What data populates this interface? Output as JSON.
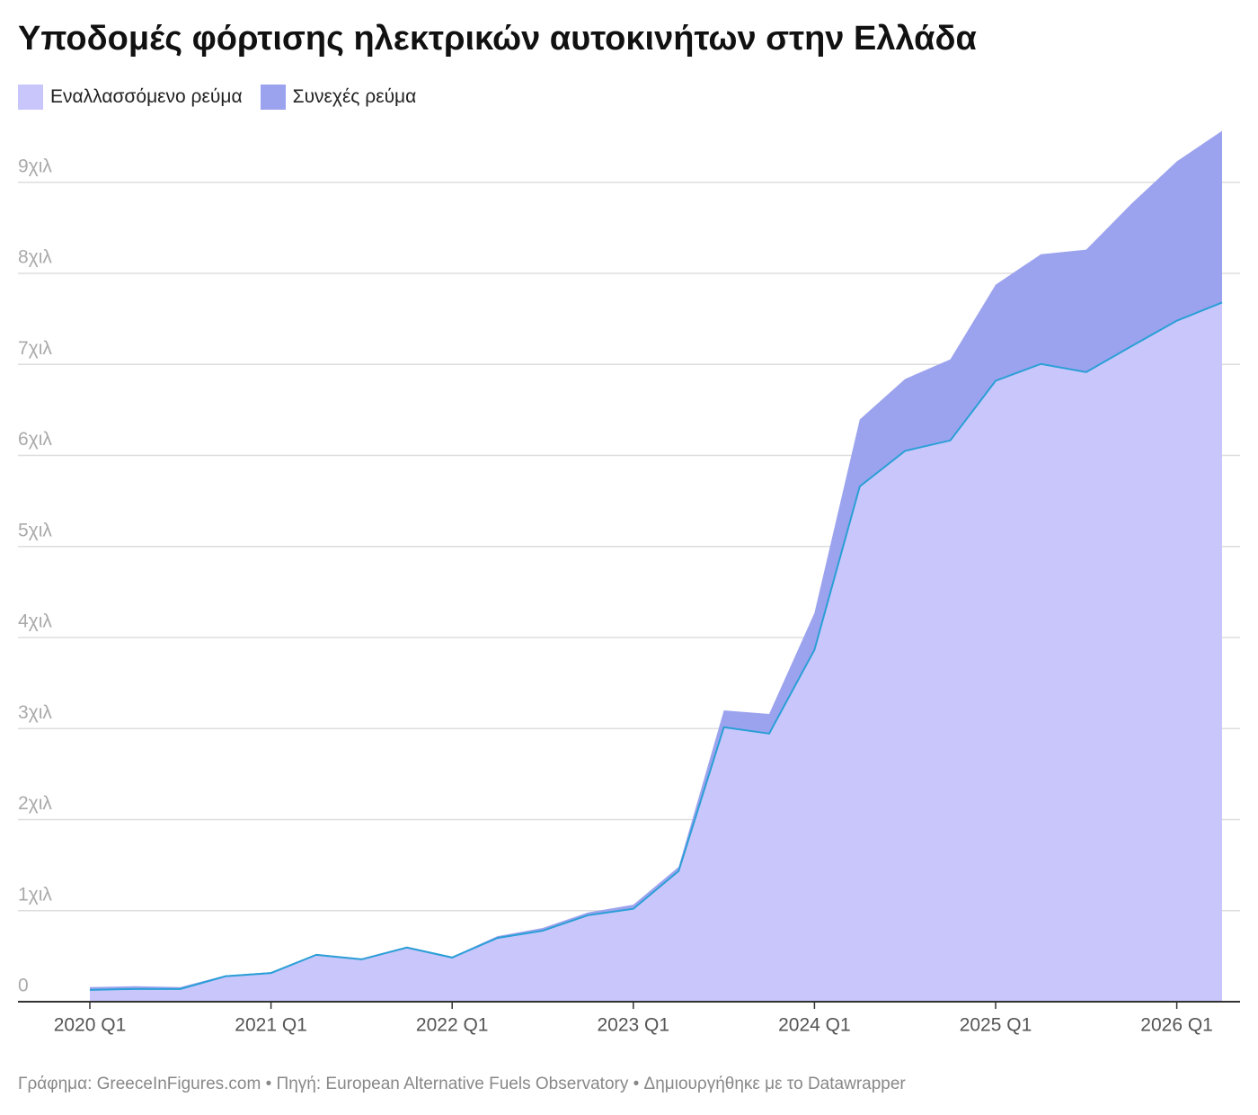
{
  "chart_data": {
    "type": "stacked_area",
    "title": "Υποδομές φόρτισης ηλεκτρικών αυτοκινήτων στην Ελλάδα",
    "categories": [
      "2020 Q1",
      null,
      null,
      null,
      "2021 Q1",
      null,
      null,
      null,
      "2022 Q1",
      null,
      null,
      null,
      "2023 Q1",
      null,
      null,
      null,
      "2024 Q1",
      null,
      null,
      null,
      "2025 Q1",
      null,
      null,
      null,
      "2026 Q1",
      null
    ],
    "series": [
      {
        "name": "Εναλλασσόμενο ρεύμα",
        "color": "#c9c6fc",
        "line_color": "#2a9fd6",
        "values": [
          130,
          140,
          140,
          280,
          315,
          515,
          465,
          595,
          485,
          700,
          780,
          950,
          1020,
          1435,
          3015,
          2945,
          3865,
          5660,
          6050,
          6165,
          6820,
          7005,
          6915,
          7200,
          7480,
          7680
        ]
      },
      {
        "name": "Συνεχές ρεύμα",
        "color": "#9ca3ee",
        "values": [
          30,
          30,
          20,
          10,
          10,
          10,
          10,
          10,
          10,
          20,
          30,
          30,
          45,
          45,
          185,
          215,
          405,
          735,
          790,
          890,
          1055,
          1205,
          1345,
          1565,
          1750,
          1885
        ]
      }
    ],
    "ylim": [
      0,
      9600
    ],
    "yticks": [
      0,
      {
        "value": 1000,
        "label": "1χιλ"
      },
      {
        "value": 2000,
        "label": "2χιλ"
      },
      {
        "value": 3000,
        "label": "3χιλ"
      },
      {
        "value": 4000,
        "label": "4χιλ"
      },
      {
        "value": 5000,
        "label": "5χιλ"
      },
      {
        "value": 6000,
        "label": "6χιλ"
      },
      {
        "value": 7000,
        "label": "7χιλ"
      },
      {
        "value": 8000,
        "label": "8χιλ"
      },
      {
        "value": 9000,
        "label": "9χιλ"
      }
    ],
    "grid": true,
    "footer": "Γράφημα: GreeceInFigures.com • Πηγή: European Alternative Fuels Observatory • Δημιουργήθηκε με το Datawrapper"
  }
}
